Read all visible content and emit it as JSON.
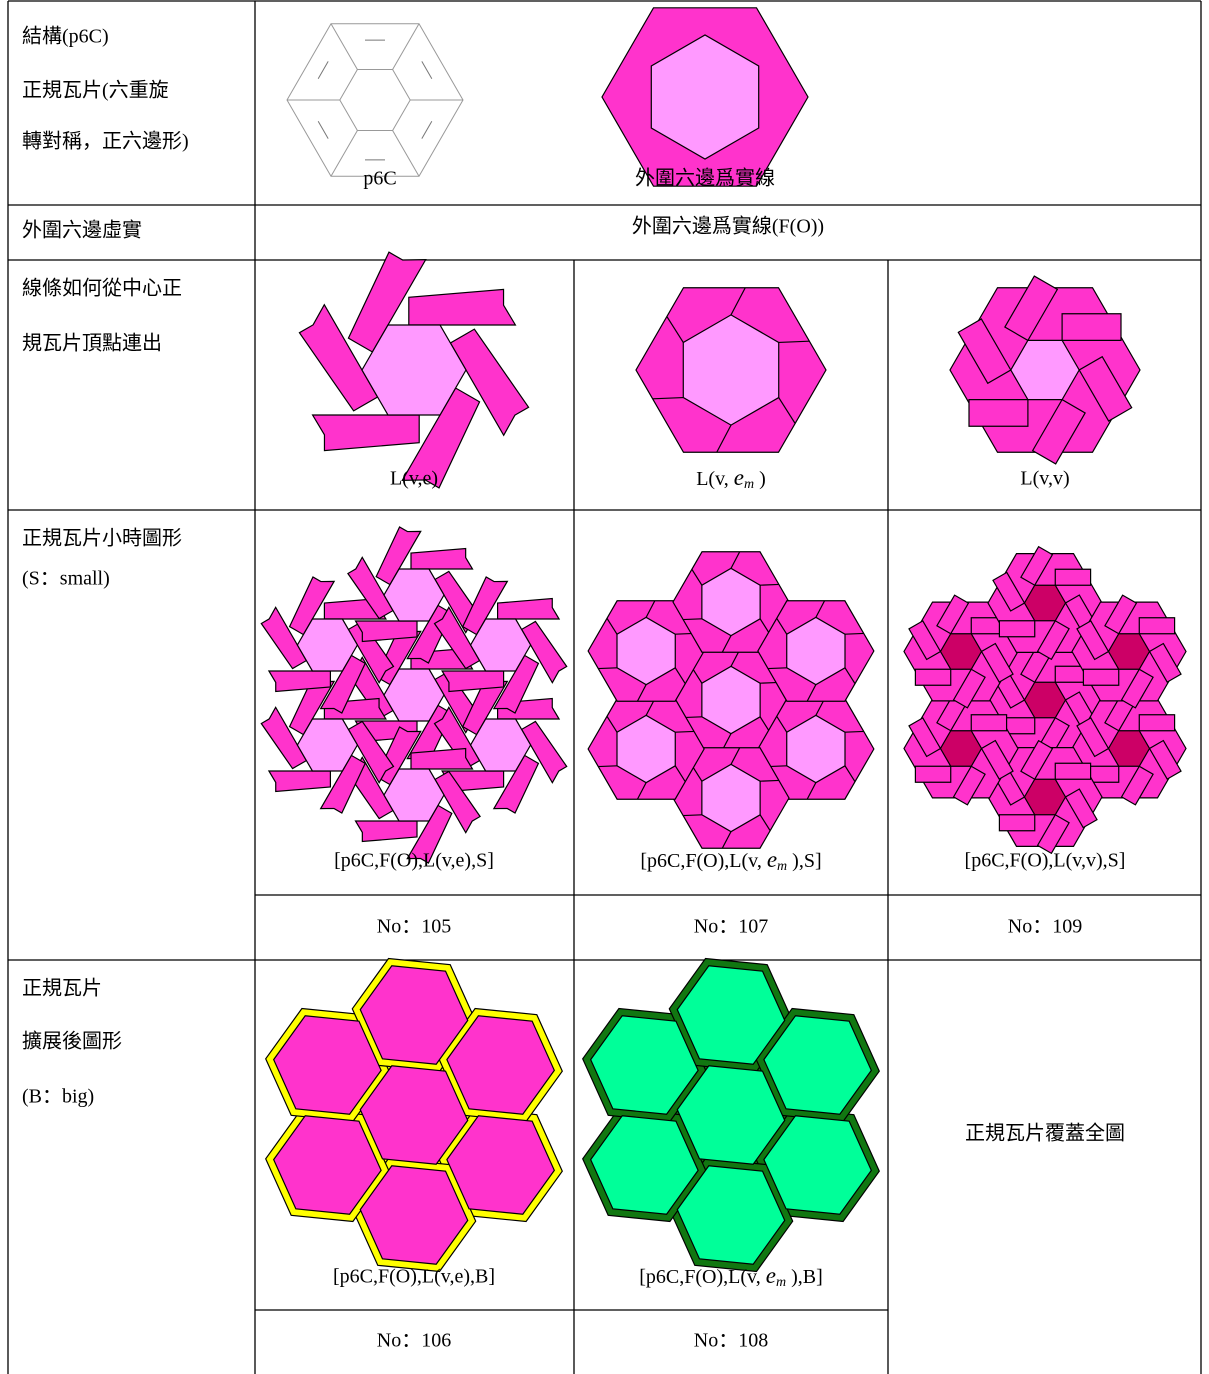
{
  "rows": [
    {
      "label": [
        "結構(p6C)",
        "正規瓦片(六重旋",
        "轉對稱，正六邊形)"
      ],
      "captions": [
        "p6C",
        "外圍六邊爲實線"
      ]
    },
    {
      "label": [
        "外圍六邊虛實"
      ],
      "content": "外圍六邊爲實線(F(O))"
    },
    {
      "label": [
        "線條如何從中心正",
        "規瓦片頂點連出"
      ],
      "captions": [
        "L(v,e)",
        {
          "before": "L(v, ",
          "italic": "e",
          "sub": "m",
          "after": " )"
        },
        "L(v,v)"
      ]
    },
    {
      "label": [
        "正規瓦片小時圖形",
        "(S：small)"
      ],
      "captions": [
        "[p6C,F(O),L(v,e),S]",
        {
          "before": "[p6C,F(O),L(v, ",
          "italic": "e",
          "sub": "m",
          "after": " ),S]"
        },
        "[p6C,F(O),L(v,v),S]"
      ],
      "numbers": [
        "No：105",
        "No：107",
        "No：109"
      ]
    },
    {
      "label": [
        "正規瓦片",
        "擴展後圖形",
        "(B：big)"
      ],
      "captions": [
        "[p6C,F(O),L(v,e),B]",
        {
          "before": "[p6C,F(O),L(v, ",
          "italic": "e",
          "sub": "m",
          "after": " ),B]"
        }
      ],
      "numbers": [
        "No：106",
        "No：108"
      ],
      "note": "正規瓦片覆蓋全圖"
    }
  ]
}
